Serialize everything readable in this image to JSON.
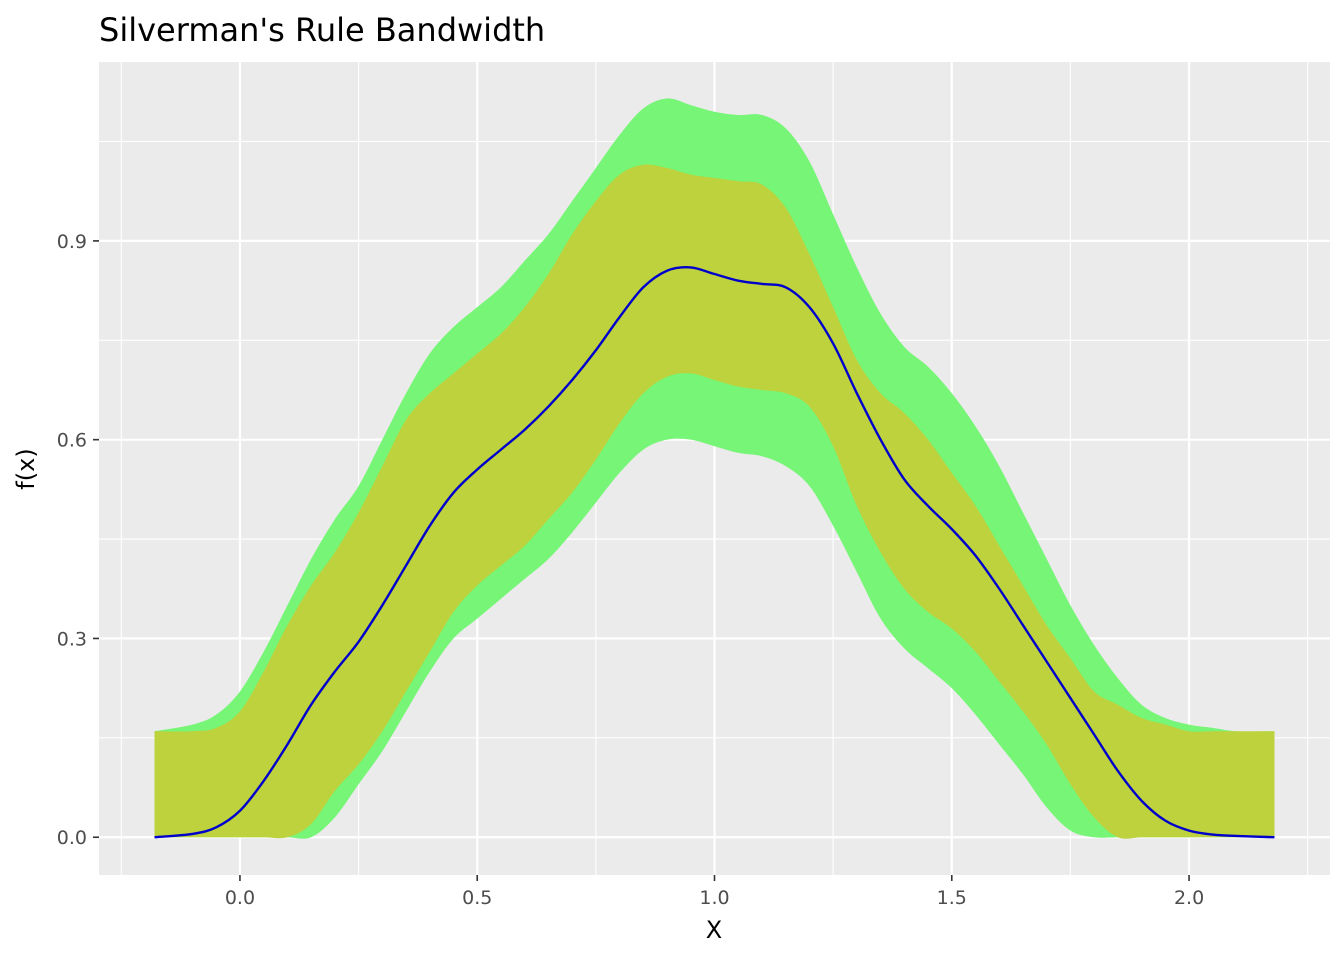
{
  "chart_data": {
    "type": "area",
    "title": "Silverman's Rule Bandwidth",
    "xlabel": "X",
    "ylabel": "f(x)",
    "xlim": [
      -0.297,
      2.297
    ],
    "ylim": [
      -0.057,
      1.17
    ],
    "x_ticks": [
      0.0,
      0.5,
      1.0,
      1.5,
      2.0
    ],
    "x_tick_labels": [
      "0.0",
      "0.5",
      "1.0",
      "1.5",
      "2.0"
    ],
    "y_ticks": [
      0.0,
      0.3,
      0.6,
      0.9
    ],
    "y_tick_labels": [
      "0.0",
      "0.3",
      "0.6",
      "0.9"
    ],
    "grid": true,
    "legend": "none",
    "colors": {
      "panel_background": "#ebebeb",
      "grid": "#ffffff",
      "outer_band": "#76f576",
      "inner_band": "#bdd23c",
      "density_line": "#0000cc"
    },
    "x": [
      -0.18,
      -0.1,
      -0.05,
      0.0,
      0.05,
      0.1,
      0.15,
      0.2,
      0.25,
      0.3,
      0.35,
      0.4,
      0.45,
      0.5,
      0.55,
      0.6,
      0.65,
      0.7,
      0.75,
      0.8,
      0.85,
      0.9,
      0.95,
      1.0,
      1.05,
      1.1,
      1.15,
      1.2,
      1.25,
      1.3,
      1.35,
      1.4,
      1.45,
      1.5,
      1.55,
      1.6,
      1.65,
      1.7,
      1.75,
      1.8,
      1.85,
      1.9,
      1.95,
      2.0,
      2.05,
      2.1,
      2.18
    ],
    "series": [
      {
        "role": "outer-band-upper",
        "values": [
          0.16,
          0.17,
          0.185,
          0.22,
          0.28,
          0.35,
          0.42,
          0.48,
          0.53,
          0.6,
          0.67,
          0.73,
          0.77,
          0.8,
          0.83,
          0.87,
          0.91,
          0.96,
          1.01,
          1.06,
          1.1,
          1.115,
          1.105,
          1.095,
          1.09,
          1.09,
          1.07,
          1.02,
          0.94,
          0.86,
          0.79,
          0.74,
          0.71,
          0.67,
          0.62,
          0.56,
          0.49,
          0.42,
          0.35,
          0.29,
          0.24,
          0.2,
          0.18,
          0.17,
          0.165,
          0.16,
          0.16
        ]
      },
      {
        "role": "inner-band-upper",
        "values": [
          0.16,
          0.16,
          0.165,
          0.19,
          0.25,
          0.32,
          0.38,
          0.43,
          0.49,
          0.56,
          0.63,
          0.67,
          0.7,
          0.73,
          0.76,
          0.8,
          0.85,
          0.91,
          0.96,
          1.0,
          1.015,
          1.01,
          1.0,
          0.995,
          0.99,
          0.985,
          0.95,
          0.88,
          0.8,
          0.72,
          0.67,
          0.64,
          0.6,
          0.55,
          0.5,
          0.44,
          0.38,
          0.32,
          0.27,
          0.22,
          0.2,
          0.18,
          0.17,
          0.16,
          0.16,
          0.16,
          0.16
        ]
      },
      {
        "role": "density-estimate",
        "values": [
          0.0,
          0.005,
          0.015,
          0.04,
          0.085,
          0.14,
          0.2,
          0.25,
          0.295,
          0.35,
          0.41,
          0.47,
          0.52,
          0.555,
          0.585,
          0.615,
          0.65,
          0.69,
          0.735,
          0.785,
          0.83,
          0.855,
          0.86,
          0.85,
          0.84,
          0.835,
          0.83,
          0.8,
          0.745,
          0.67,
          0.6,
          0.54,
          0.5,
          0.465,
          0.425,
          0.375,
          0.32,
          0.265,
          0.21,
          0.155,
          0.1,
          0.055,
          0.025,
          0.01,
          0.004,
          0.002,
          0.0
        ]
      },
      {
        "role": "inner-band-lower",
        "values": [
          0.0,
          0.0,
          0.0,
          0.0,
          0.0,
          0.0,
          0.02,
          0.07,
          0.11,
          0.16,
          0.22,
          0.28,
          0.34,
          0.38,
          0.41,
          0.44,
          0.48,
          0.52,
          0.57,
          0.625,
          0.67,
          0.695,
          0.7,
          0.69,
          0.68,
          0.675,
          0.67,
          0.65,
          0.59,
          0.5,
          0.43,
          0.375,
          0.34,
          0.315,
          0.28,
          0.235,
          0.19,
          0.14,
          0.08,
          0.03,
          0.0,
          0.0,
          0.0,
          0.0,
          0.0,
          0.0,
          0.0
        ]
      },
      {
        "role": "outer-band-lower",
        "values": [
          0.0,
          0.0,
          0.0,
          0.0,
          0.0,
          0.0,
          0.0,
          0.03,
          0.08,
          0.13,
          0.19,
          0.25,
          0.3,
          0.33,
          0.36,
          0.39,
          0.42,
          0.46,
          0.505,
          0.55,
          0.585,
          0.6,
          0.6,
          0.59,
          0.58,
          0.575,
          0.56,
          0.53,
          0.47,
          0.4,
          0.33,
          0.285,
          0.255,
          0.225,
          0.185,
          0.14,
          0.095,
          0.045,
          0.01,
          0.0,
          0.0,
          0.0,
          0.0,
          0.0,
          0.0,
          0.0,
          0.0
        ]
      }
    ]
  }
}
